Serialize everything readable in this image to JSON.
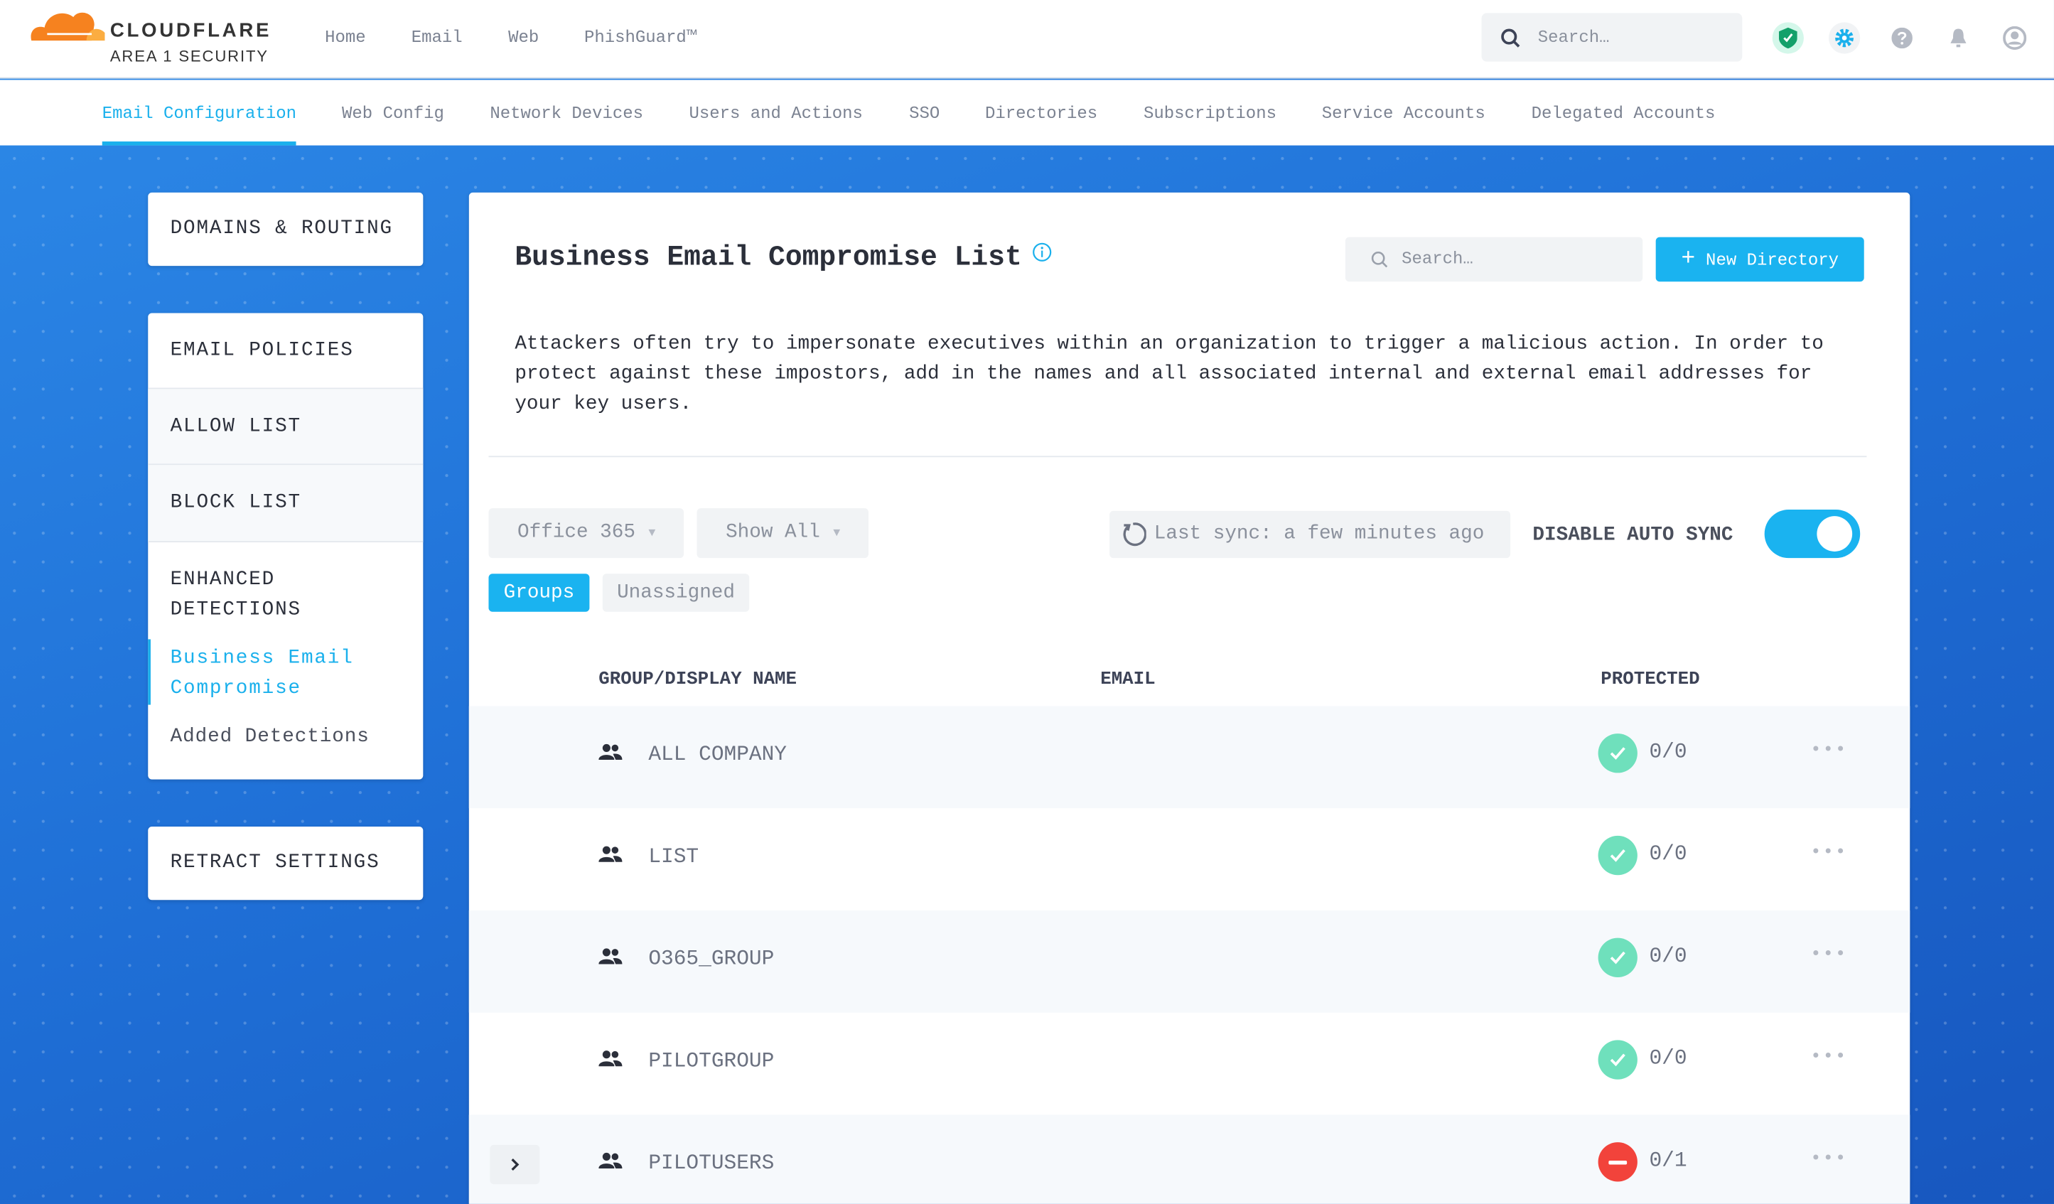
{
  "brand": {
    "name": "CLOUDFLARE",
    "subtitle": "AREA 1 SECURITY",
    "colors": {
      "orange": "#f6821f",
      "accent": "#1ab0ec",
      "green": "#6fe0bc",
      "red": "#f2433b"
    }
  },
  "topnav": {
    "items": [
      "Home",
      "Email",
      "Web",
      "PhishGuard™"
    ],
    "search_placeholder": "Search…",
    "icons": [
      "shield-check-icon",
      "gear-icon",
      "help-icon",
      "bell-icon",
      "user-icon"
    ]
  },
  "subnav": {
    "active": "Email Configuration",
    "items": [
      "Email Configuration",
      "Web Config",
      "Network Devices",
      "Users and Actions",
      "SSO",
      "Directories",
      "Subscriptions",
      "Service Accounts",
      "Delegated Accounts"
    ]
  },
  "sidebar": {
    "domains": "DOMAINS & ROUTING",
    "email_policies": "EMAIL POLICIES",
    "allow_list": "ALLOW LIST",
    "block_list": "BLOCK LIST",
    "enhanced_1": "ENHANCED",
    "enhanced_2": "DETECTIONS",
    "bec_1": "Business Email",
    "bec_2": "Compromise",
    "added": "Added Detections",
    "retract": "RETRACT SETTINGS"
  },
  "main": {
    "title": "Business Email Compromise List",
    "search_placeholder": "Search…",
    "new_button": "New Directory",
    "description": [
      "Attackers often try to impersonate executives within an organization to trigger a malicious action. In order to",
      "protect against these impostors, add in the names and all associated internal and external email addresses for",
      "your key users."
    ],
    "filter_source": "Office 365",
    "filter_show": "Show All",
    "last_sync": "Last sync: a few minutes ago",
    "auto_sync_label": "DISABLE AUTO SYNC",
    "auto_sync_on": true,
    "view_tabs": [
      "Groups",
      "Unassigned"
    ],
    "active_view": "Groups",
    "columns": [
      "GROUP/DISPLAY NAME",
      "EMAIL",
      "PROTECTED"
    ],
    "rows": [
      {
        "name": "ALL COMPANY",
        "protected": "0/0",
        "status": "ok"
      },
      {
        "name": "LIST",
        "protected": "0/0",
        "status": "ok"
      },
      {
        "name": "O365_GROUP",
        "protected": "0/0",
        "status": "ok"
      },
      {
        "name": "PILOTGROUP",
        "protected": "0/0",
        "status": "ok"
      },
      {
        "name": "PILOTUSERS",
        "protected": "0/1",
        "status": "unprotected",
        "expandable": true
      }
    ]
  }
}
